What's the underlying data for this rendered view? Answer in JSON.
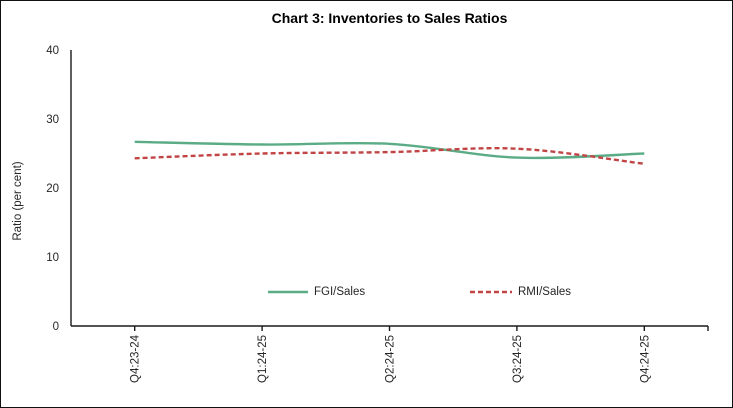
{
  "chart_data": {
    "type": "line",
    "title": "Chart 3: Inventories to Sales Ratios",
    "xlabel": "",
    "ylabel": "Ratio (per cent)",
    "categories": [
      "Q4:23-24",
      "Q1:24-25",
      "Q2:24-25",
      "Q3:24-25",
      "Q4:24-25"
    ],
    "series": [
      {
        "name": "FGI/Sales",
        "values": [
          26.7,
          26.3,
          26.4,
          24.4,
          25.0
        ],
        "color": "#5BAC86",
        "style": "solid"
      },
      {
        "name": "RMI/Sales",
        "values": [
          24.3,
          25.0,
          25.2,
          25.7,
          23.5
        ],
        "color": "#C14545",
        "style": "dashed"
      }
    ],
    "ylim": [
      0,
      40
    ],
    "yticks": [
      0,
      10,
      20,
      30,
      40
    ],
    "grid": false,
    "line_smoothing": true,
    "legend_position": "bottom-inside",
    "axis_color": "#1a1a1a",
    "text_color": "#262626"
  }
}
